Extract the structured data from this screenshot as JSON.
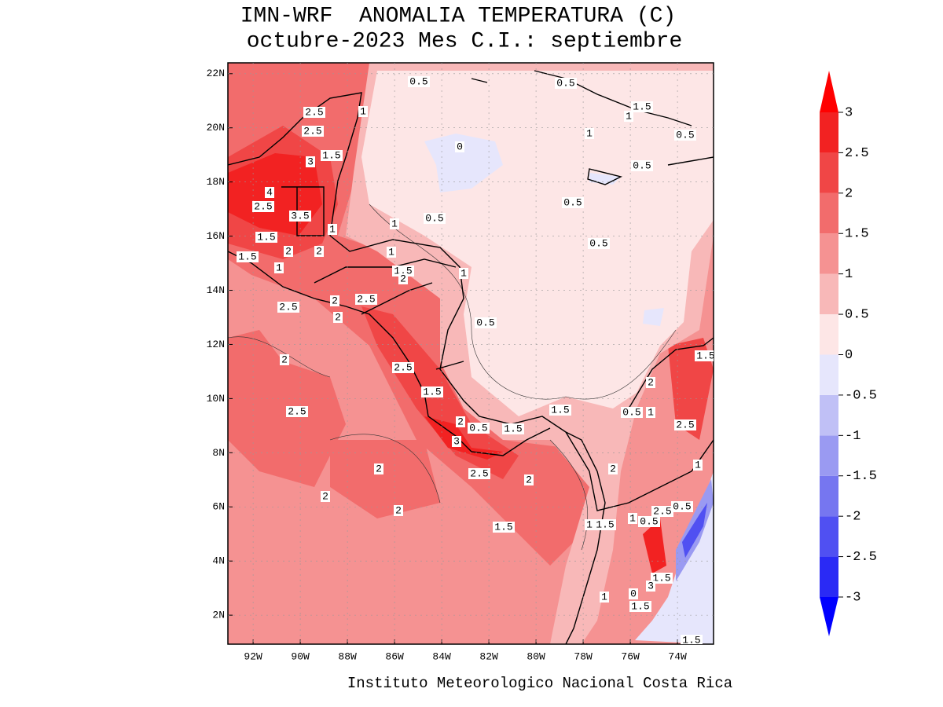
{
  "map": {
    "title": "IMN-WRF  ANOMALIA TEMPERATURA (C)",
    "subtitle": "octubre-2023 Mes C.I.: septiembre",
    "footer": "Instituto Meteorologico Nacional Costa Rica",
    "xlim": [
      -93.07,
      -72.47
    ],
    "ylim": [
      0.93,
      22.4
    ],
    "xticks": [
      {
        "value": -92,
        "label": "92W"
      },
      {
        "value": -90,
        "label": "90W"
      },
      {
        "value": -88,
        "label": "88W"
      },
      {
        "value": -86,
        "label": "86W"
      },
      {
        "value": -84,
        "label": "84W"
      },
      {
        "value": -82,
        "label": "82W"
      },
      {
        "value": -80,
        "label": "80W"
      },
      {
        "value": -78,
        "label": "78W"
      },
      {
        "value": -76,
        "label": "76W"
      },
      {
        "value": -74,
        "label": "74W"
      }
    ],
    "yticks": [
      {
        "value": 2,
        "label": "2N"
      },
      {
        "value": 4,
        "label": "4N"
      },
      {
        "value": 6,
        "label": "6N"
      },
      {
        "value": 8,
        "label": "8N"
      },
      {
        "value": 10,
        "label": "10N"
      },
      {
        "value": 12,
        "label": "12N"
      },
      {
        "value": 14,
        "label": "14N"
      },
      {
        "value": 16,
        "label": "16N"
      },
      {
        "value": 18,
        "label": "18N"
      },
      {
        "value": 20,
        "label": "20N"
      },
      {
        "value": 22,
        "label": "22N"
      }
    ],
    "colorbar": {
      "levels": [
        -3,
        -2.5,
        -2,
        -1.5,
        -1,
        -0.5,
        0,
        0.5,
        1,
        1.5,
        2,
        2.5,
        3
      ],
      "colors": [
        "#0000ff",
        "#2a2af5",
        "#5050f2",
        "#7676f0",
        "#9a9af2",
        "#c0c0f6",
        "#e6e6fc",
        "#fde6e6",
        "#f8b8b8",
        "#f59292",
        "#f26c6c",
        "#f04646",
        "#f22222",
        "#ff0000"
      ]
    },
    "contour_labels": [
      0.5,
      0.5,
      1.5,
      1,
      2.5,
      1,
      2.5,
      1,
      0.5,
      0,
      1.5,
      3,
      0.5,
      4,
      2.5,
      0.5,
      3.5,
      1,
      0.5,
      1,
      1.5,
      0.5,
      2,
      2,
      1.5,
      1,
      1,
      1.5,
      2,
      1,
      2,
      2.5,
      2.5,
      2,
      0.5,
      1.5,
      2,
      2.5,
      1.5,
      2,
      2.5,
      1.5,
      0.5,
      1,
      2,
      0.5,
      1.5,
      2.5,
      3,
      2.5,
      2,
      2,
      2,
      1,
      2,
      2,
      0.5,
      2.5,
      1.5,
      1,
      1.5,
      1,
      0.5,
      1.5,
      3,
      0,
      1,
      1.5,
      1.5
    ]
  }
}
